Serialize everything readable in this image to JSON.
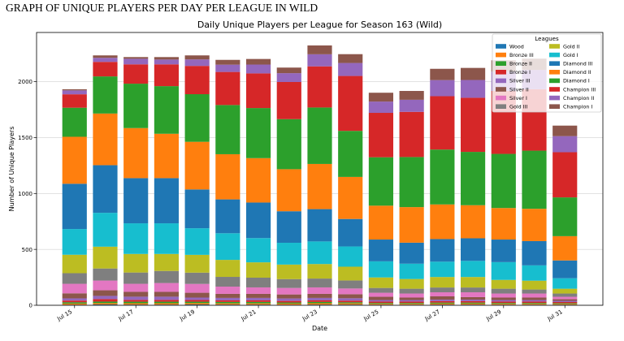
{
  "header": {
    "title": "GRAPH OF UNIQUE PLAYERS PER DAY PER LEAGUE IN WILD"
  },
  "chart_data": {
    "type": "bar",
    "stacked": true,
    "title": "Daily Unique Players per League for Season 163 (Wild)",
    "xlabel": "Date",
    "ylabel": "Number of Unique Players",
    "x": [
      "Jul 15",
      "Jul 16",
      "Jul 17",
      "Jul 18",
      "Jul 19",
      "Jul 20",
      "Jul 21",
      "Jul 22",
      "Jul 23",
      "Jul 24",
      "Jul 25",
      "Jul 26",
      "Jul 27",
      "Jul 28",
      "Jul 29",
      "Jul 30",
      "Jul 31"
    ],
    "xticks": [
      "Jul 15",
      "Jul 17",
      "Jul 19",
      "Jul 21",
      "Jul 23",
      "Jul 25",
      "Jul 27",
      "Jul 29",
      "Jul 31"
    ],
    "yticks": [
      0,
      500,
      1000,
      1500,
      2000
    ],
    "ylim": [
      0,
      2440
    ],
    "grid": "horizontal",
    "legend": {
      "title": "Leagues",
      "placement": "top-right",
      "columns": 2
    },
    "series": [
      {
        "name": "Wood",
        "color": "#1f77b4",
        "values": [
          5,
          7,
          6,
          6,
          7,
          6,
          6,
          5,
          6,
          6,
          5,
          5,
          6,
          6,
          5,
          5,
          5
        ]
      },
      {
        "name": "Bronze III",
        "color": "#ff7f0e",
        "values": [
          10,
          12,
          12,
          12,
          12,
          11,
          11,
          10,
          12,
          11,
          8,
          8,
          9,
          9,
          8,
          8,
          7
        ]
      },
      {
        "name": "Bronze II",
        "color": "#2ca02c",
        "values": [
          12,
          14,
          14,
          14,
          13,
          13,
          13,
          10,
          12,
          10,
          8,
          8,
          9,
          9,
          8,
          8,
          7
        ]
      },
      {
        "name": "Bronze I",
        "color": "#d62728",
        "values": [
          15,
          22,
          16,
          16,
          15,
          14,
          14,
          14,
          14,
          14,
          12,
          12,
          13,
          13,
          12,
          12,
          10
        ]
      },
      {
        "name": "Silver III",
        "color": "#9467bd",
        "values": [
          20,
          29,
          29,
          29,
          22,
          22,
          22,
          22,
          22,
          22,
          14,
          14,
          14,
          14,
          14,
          14,
          11
        ]
      },
      {
        "name": "Silver II",
        "color": "#8c564b",
        "values": [
          45,
          50,
          43,
          43,
          43,
          36,
          36,
          36,
          36,
          36,
          29,
          22,
          29,
          22,
          22,
          22,
          14
        ]
      },
      {
        "name": "Silver I",
        "color": "#e377c2",
        "values": [
          85,
          87,
          72,
          79,
          79,
          65,
          58,
          58,
          58,
          51,
          36,
          36,
          36,
          43,
          36,
          36,
          22
        ]
      },
      {
        "name": "Gold III",
        "color": "#7f7f7f",
        "values": [
          95,
          108,
          101,
          108,
          101,
          87,
          87,
          79,
          79,
          72,
          43,
          43,
          43,
          43,
          43,
          36,
          29
        ]
      },
      {
        "name": "Gold II",
        "color": "#bcbd22",
        "values": [
          165,
          195,
          166,
          152,
          159,
          152,
          137,
          130,
          130,
          123,
          94,
          87,
          94,
          94,
          79,
          79,
          43
        ]
      },
      {
        "name": "Gold I",
        "color": "#17becf",
        "values": [
          230,
          303,
          274,
          274,
          238,
          238,
          217,
          195,
          202,
          181,
          144,
          137,
          137,
          144,
          159,
          137,
          94
        ]
      },
      {
        "name": "Diamond III",
        "color": "#1f77b4",
        "values": [
          405,
          426,
          404,
          404,
          347,
          303,
          318,
          282,
          289,
          246,
          195,
          188,
          202,
          202,
          202,
          217,
          159
        ]
      },
      {
        "name": "Diamond II",
        "color": "#ff7f0e",
        "values": [
          420,
          462,
          448,
          397,
          426,
          404,
          397,
          376,
          404,
          376,
          303,
          318,
          310,
          296,
          282,
          289,
          217
        ]
      },
      {
        "name": "Diamond I",
        "color": "#2ca02c",
        "values": [
          260,
          332,
          397,
          426,
          426,
          440,
          448,
          448,
          505,
          412,
          433,
          448,
          491,
          477,
          484,
          520,
          347
        ]
      },
      {
        "name": "Champion III",
        "color": "#d62728",
        "values": [
          120,
          130,
          173,
          195,
          253,
          296,
          310,
          332,
          368,
          491,
          397,
          404,
          477,
          484,
          563,
          549,
          404
        ]
      },
      {
        "name": "Champion II",
        "color": "#9467bd",
        "values": [
          35,
          36,
          50,
          43,
          58,
          65,
          79,
          79,
          108,
          116,
          101,
          108,
          144,
          159,
          173,
          173,
          144
        ]
      },
      {
        "name": "Champion I",
        "color": "#8c564b",
        "values": [
          10,
          22,
          15,
          22,
          36,
          43,
          50,
          50,
          79,
          79,
          79,
          79,
          101,
          108,
          101,
          101,
          94
        ]
      }
    ]
  }
}
